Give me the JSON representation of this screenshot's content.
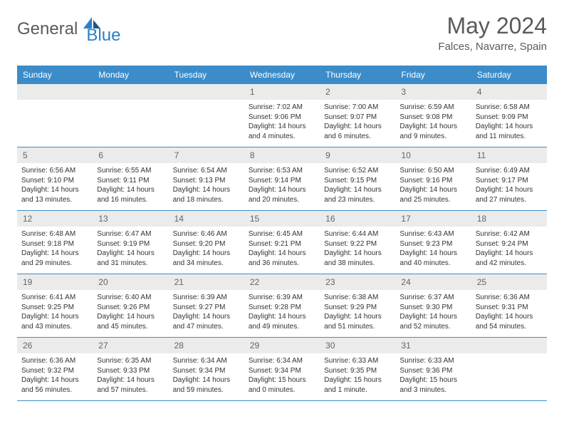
{
  "logo": {
    "general": "General",
    "blue": "Blue"
  },
  "title": "May 2024",
  "location": "Falces, Navarre, Spain",
  "colors": {
    "headerBg": "#3b8cc9",
    "dayHeaderBg": "#ebebeb",
    "textGray": "#5a5a5a",
    "textDark": "#333333",
    "blue": "#2980c8"
  },
  "weekdays": [
    "Sunday",
    "Monday",
    "Tuesday",
    "Wednesday",
    "Thursday",
    "Friday",
    "Saturday"
  ],
  "days": [
    {
      "num": "",
      "sunrise": "",
      "sunset": "",
      "daylight": ""
    },
    {
      "num": "",
      "sunrise": "",
      "sunset": "",
      "daylight": ""
    },
    {
      "num": "",
      "sunrise": "",
      "sunset": "",
      "daylight": ""
    },
    {
      "num": "1",
      "sunrise": "Sunrise: 7:02 AM",
      "sunset": "Sunset: 9:06 PM",
      "daylight": "Daylight: 14 hours and 4 minutes."
    },
    {
      "num": "2",
      "sunrise": "Sunrise: 7:00 AM",
      "sunset": "Sunset: 9:07 PM",
      "daylight": "Daylight: 14 hours and 6 minutes."
    },
    {
      "num": "3",
      "sunrise": "Sunrise: 6:59 AM",
      "sunset": "Sunset: 9:08 PM",
      "daylight": "Daylight: 14 hours and 9 minutes."
    },
    {
      "num": "4",
      "sunrise": "Sunrise: 6:58 AM",
      "sunset": "Sunset: 9:09 PM",
      "daylight": "Daylight: 14 hours and 11 minutes."
    },
    {
      "num": "5",
      "sunrise": "Sunrise: 6:56 AM",
      "sunset": "Sunset: 9:10 PM",
      "daylight": "Daylight: 14 hours and 13 minutes."
    },
    {
      "num": "6",
      "sunrise": "Sunrise: 6:55 AM",
      "sunset": "Sunset: 9:11 PM",
      "daylight": "Daylight: 14 hours and 16 minutes."
    },
    {
      "num": "7",
      "sunrise": "Sunrise: 6:54 AM",
      "sunset": "Sunset: 9:13 PM",
      "daylight": "Daylight: 14 hours and 18 minutes."
    },
    {
      "num": "8",
      "sunrise": "Sunrise: 6:53 AM",
      "sunset": "Sunset: 9:14 PM",
      "daylight": "Daylight: 14 hours and 20 minutes."
    },
    {
      "num": "9",
      "sunrise": "Sunrise: 6:52 AM",
      "sunset": "Sunset: 9:15 PM",
      "daylight": "Daylight: 14 hours and 23 minutes."
    },
    {
      "num": "10",
      "sunrise": "Sunrise: 6:50 AM",
      "sunset": "Sunset: 9:16 PM",
      "daylight": "Daylight: 14 hours and 25 minutes."
    },
    {
      "num": "11",
      "sunrise": "Sunrise: 6:49 AM",
      "sunset": "Sunset: 9:17 PM",
      "daylight": "Daylight: 14 hours and 27 minutes."
    },
    {
      "num": "12",
      "sunrise": "Sunrise: 6:48 AM",
      "sunset": "Sunset: 9:18 PM",
      "daylight": "Daylight: 14 hours and 29 minutes."
    },
    {
      "num": "13",
      "sunrise": "Sunrise: 6:47 AM",
      "sunset": "Sunset: 9:19 PM",
      "daylight": "Daylight: 14 hours and 31 minutes."
    },
    {
      "num": "14",
      "sunrise": "Sunrise: 6:46 AM",
      "sunset": "Sunset: 9:20 PM",
      "daylight": "Daylight: 14 hours and 34 minutes."
    },
    {
      "num": "15",
      "sunrise": "Sunrise: 6:45 AM",
      "sunset": "Sunset: 9:21 PM",
      "daylight": "Daylight: 14 hours and 36 minutes."
    },
    {
      "num": "16",
      "sunrise": "Sunrise: 6:44 AM",
      "sunset": "Sunset: 9:22 PM",
      "daylight": "Daylight: 14 hours and 38 minutes."
    },
    {
      "num": "17",
      "sunrise": "Sunrise: 6:43 AM",
      "sunset": "Sunset: 9:23 PM",
      "daylight": "Daylight: 14 hours and 40 minutes."
    },
    {
      "num": "18",
      "sunrise": "Sunrise: 6:42 AM",
      "sunset": "Sunset: 9:24 PM",
      "daylight": "Daylight: 14 hours and 42 minutes."
    },
    {
      "num": "19",
      "sunrise": "Sunrise: 6:41 AM",
      "sunset": "Sunset: 9:25 PM",
      "daylight": "Daylight: 14 hours and 43 minutes."
    },
    {
      "num": "20",
      "sunrise": "Sunrise: 6:40 AM",
      "sunset": "Sunset: 9:26 PM",
      "daylight": "Daylight: 14 hours and 45 minutes."
    },
    {
      "num": "21",
      "sunrise": "Sunrise: 6:39 AM",
      "sunset": "Sunset: 9:27 PM",
      "daylight": "Daylight: 14 hours and 47 minutes."
    },
    {
      "num": "22",
      "sunrise": "Sunrise: 6:39 AM",
      "sunset": "Sunset: 9:28 PM",
      "daylight": "Daylight: 14 hours and 49 minutes."
    },
    {
      "num": "23",
      "sunrise": "Sunrise: 6:38 AM",
      "sunset": "Sunset: 9:29 PM",
      "daylight": "Daylight: 14 hours and 51 minutes."
    },
    {
      "num": "24",
      "sunrise": "Sunrise: 6:37 AM",
      "sunset": "Sunset: 9:30 PM",
      "daylight": "Daylight: 14 hours and 52 minutes."
    },
    {
      "num": "25",
      "sunrise": "Sunrise: 6:36 AM",
      "sunset": "Sunset: 9:31 PM",
      "daylight": "Daylight: 14 hours and 54 minutes."
    },
    {
      "num": "26",
      "sunrise": "Sunrise: 6:36 AM",
      "sunset": "Sunset: 9:32 PM",
      "daylight": "Daylight: 14 hours and 56 minutes."
    },
    {
      "num": "27",
      "sunrise": "Sunrise: 6:35 AM",
      "sunset": "Sunset: 9:33 PM",
      "daylight": "Daylight: 14 hours and 57 minutes."
    },
    {
      "num": "28",
      "sunrise": "Sunrise: 6:34 AM",
      "sunset": "Sunset: 9:34 PM",
      "daylight": "Daylight: 14 hours and 59 minutes."
    },
    {
      "num": "29",
      "sunrise": "Sunrise: 6:34 AM",
      "sunset": "Sunset: 9:34 PM",
      "daylight": "Daylight: 15 hours and 0 minutes."
    },
    {
      "num": "30",
      "sunrise": "Sunrise: 6:33 AM",
      "sunset": "Sunset: 9:35 PM",
      "daylight": "Daylight: 15 hours and 1 minute."
    },
    {
      "num": "31",
      "sunrise": "Sunrise: 6:33 AM",
      "sunset": "Sunset: 9:36 PM",
      "daylight": "Daylight: 15 hours and 3 minutes."
    },
    {
      "num": "",
      "sunrise": "",
      "sunset": "",
      "daylight": ""
    }
  ]
}
